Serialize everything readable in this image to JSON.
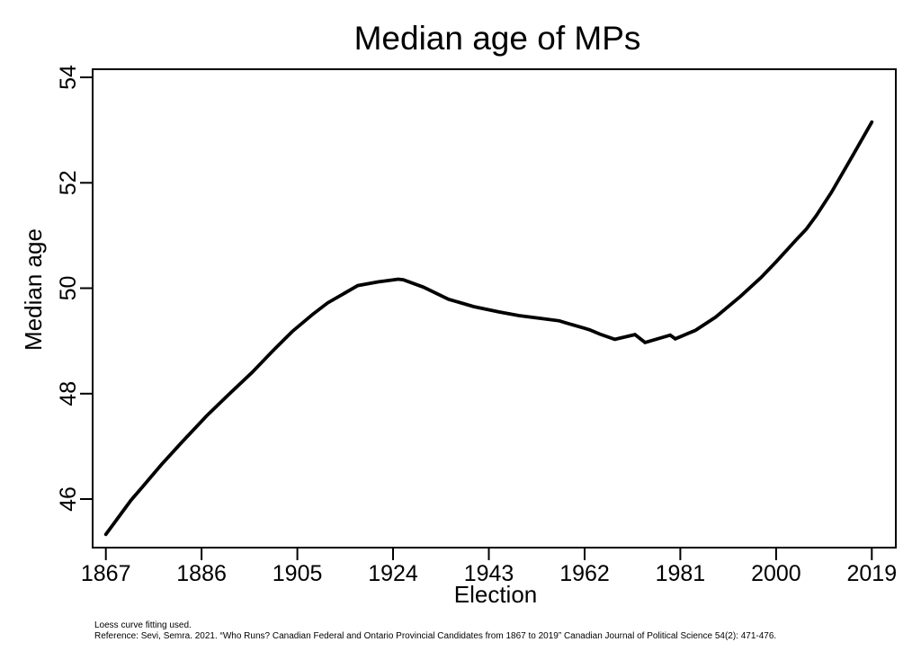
{
  "page": {
    "background_color": "#ffffff",
    "foreground_color": "#000000"
  },
  "chart_data": {
    "type": "line",
    "title": "Median age of MPs",
    "xlabel": "Election",
    "ylabel": "Median age",
    "grid": false,
    "legend": "none",
    "line_color": "#000000",
    "x_ticks": [
      1867,
      1886,
      1905,
      1924,
      1943,
      1962,
      1981,
      2000,
      2019
    ],
    "y_ticks": [
      46,
      48,
      50,
      52,
      54
    ],
    "xlim": [
      1864,
      2024
    ],
    "ylim": [
      45.1,
      54.2
    ],
    "x": [
      1867,
      1872,
      1874,
      1878,
      1882,
      1887,
      1891,
      1896,
      1900,
      1904,
      1908,
      1911,
      1917,
      1921,
      1925,
      1926,
      1930,
      1935,
      1940,
      1945,
      1949,
      1953,
      1957,
      1958,
      1962,
      1963,
      1965,
      1968,
      1972,
      1974,
      1979,
      1980,
      1984,
      1988,
      1993,
      1997,
      2000,
      2004,
      2006,
      2008,
      2011,
      2015,
      2019
    ],
    "values": [
      45.33,
      45.98,
      46.2,
      46.65,
      47.07,
      47.58,
      47.95,
      48.4,
      48.8,
      49.18,
      49.5,
      49.72,
      50.05,
      50.12,
      50.17,
      50.16,
      50.02,
      49.79,
      49.65,
      49.55,
      49.48,
      49.43,
      49.38,
      49.35,
      49.24,
      49.21,
      49.13,
      49.03,
      49.12,
      48.97,
      49.11,
      49.04,
      49.2,
      49.45,
      49.85,
      50.2,
      50.5,
      50.92,
      51.12,
      51.38,
      51.82,
      52.48,
      53.15
    ],
    "notes": [
      "Loess curve fitting used.",
      "Reference: Sevi, Semra. 2021. “Who Runs? Canadian Federal and Ontario Provincial Candidates from 1867 to 2019” Canadian Journal of Political Science 54(2): 471-476."
    ]
  }
}
